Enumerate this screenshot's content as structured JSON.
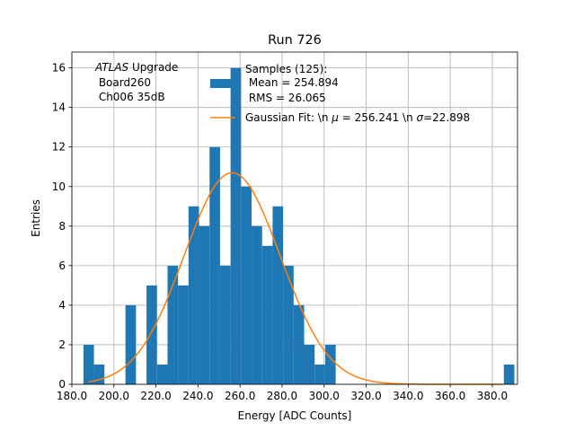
{
  "chart_data": {
    "type": "bar",
    "title": "Run 726",
    "xlabel": "Energy [ADC Counts]",
    "ylabel": "Entries",
    "xlim": [
      180,
      392
    ],
    "ylim": [
      0,
      16.8
    ],
    "grid": true,
    "xticks": [
      180,
      200,
      220,
      240,
      260,
      280,
      300,
      320,
      340,
      360,
      380
    ],
    "xtick_labels": [
      "180.0",
      "200.0",
      "220.0",
      "240.0",
      "260.0",
      "280.0",
      "300.0",
      "320.0",
      "340.0",
      "360.0",
      "380.0"
    ],
    "yticks": [
      0,
      2,
      4,
      6,
      8,
      10,
      12,
      14,
      16
    ],
    "ytick_labels": [
      "0",
      "2",
      "4",
      "6",
      "8",
      "10",
      "12",
      "14",
      "16"
    ],
    "bin_edges": [
      185.5,
      190.5,
      195.5,
      200.5,
      205.5,
      210.5,
      215.5,
      220.5,
      225.5,
      230.5,
      235.5,
      240.5,
      245.5,
      250.5,
      255.5,
      260.5,
      265.5,
      270.5,
      275.5,
      280.5,
      285.5,
      290.5,
      295.5,
      300.5,
      305.5,
      310.5,
      315.5,
      320.5,
      325.5,
      330.5,
      335.5,
      340.5,
      345.5,
      350.5,
      355.5,
      360.5,
      365.5,
      370.5,
      375.5,
      380.5,
      385.5,
      390.5
    ],
    "series": [
      {
        "name": "Samples (125):\n Mean = 254.894\n RMS = 26.065",
        "color": "#1f77b4",
        "values": [
          2,
          1,
          0,
          0,
          4,
          0,
          5,
          1,
          6,
          5,
          9,
          8,
          12,
          6,
          16,
          10,
          8,
          7,
          9,
          6,
          4,
          2,
          1,
          2,
          0,
          0,
          0,
          0,
          0,
          0,
          0,
          0,
          0,
          0,
          0,
          0,
          0,
          0,
          0,
          0,
          1
        ]
      },
      {
        "name": "Gaussian Fit: \\n $\\mu$ = 256.241 \\n $\\sigma$=22.898",
        "color": "#ff7f0e",
        "type": "line",
        "function": "gaussian",
        "amplitude": 10.7,
        "mu": 256.241,
        "sigma": 22.898,
        "x_range": [
          188,
          385
        ]
      }
    ],
    "annotation": {
      "line1_italic": "ATLAS",
      "line1_rest": " Upgrade",
      "line2": " Board260",
      "line3": " Ch006 35dB"
    },
    "legend": {
      "placement": "top-center",
      "entries": [
        {
          "lines": [
            "Samples (125):",
            " Mean = 254.894",
            " RMS = 26.065"
          ]
        },
        {
          "pre": "Gaussian Fit: \\n ",
          "mu_sym": "μ",
          "mid": " = 256.241 \\n ",
          "sigma_sym": "σ",
          "post": "=22.898"
        }
      ]
    }
  }
}
